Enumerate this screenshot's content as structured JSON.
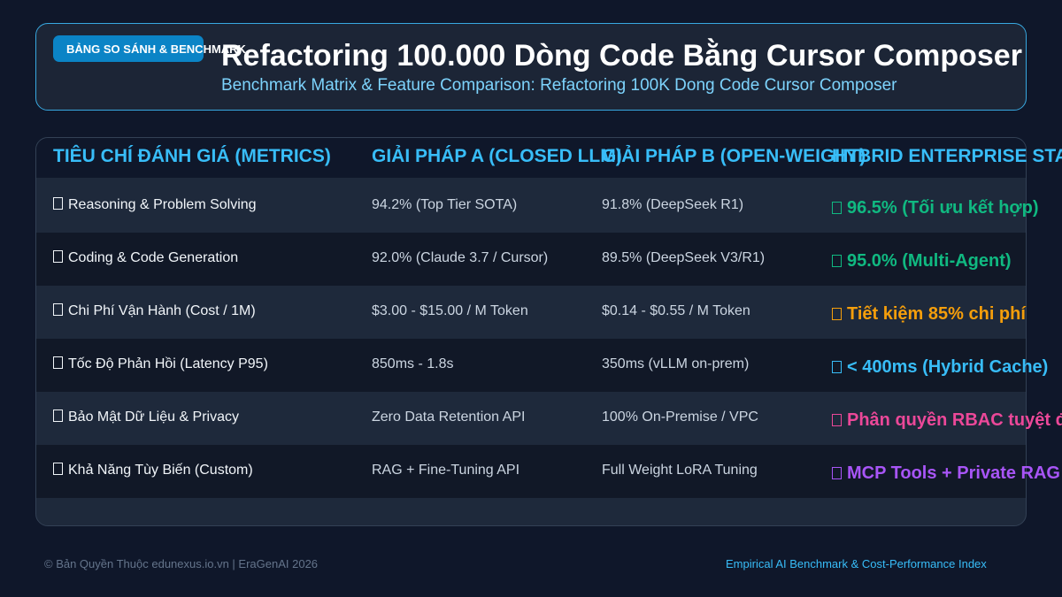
{
  "header": {
    "badge": "BẢNG SO SÁNH & BENCHMARK",
    "title": "Refactoring 100.000 Dòng Code Bằng Cursor Composer",
    "subtitle": "Benchmark Matrix & Feature Comparison: Refactoring 100K Dong Code Cursor Composer"
  },
  "table": {
    "columns": [
      "TIÊU CHÍ ĐÁNH GIÁ (METRICS)",
      "GIẢI PHÁP A (CLOSED LLM)",
      "GIẢI PHÁP B (OPEN-WEIGHT)",
      "HYBRID ENTERPRISE STACK"
    ],
    "rows": [
      [
        "Reasoning & Problem Solving",
        "94.2% (Top Tier SOTA)",
        "91.8% (DeepSeek R1)",
        "96.5% (Tối ưu kết hợp)"
      ],
      [
        "Coding & Code Generation",
        "92.0% (Claude 3.7 / Cursor)",
        "89.5% (DeepSeek V3/R1)",
        "95.0% (Multi-Agent)"
      ],
      [
        "Chi Phí Vận Hành (Cost / 1M)",
        "$3.00 - $15.00 / M Token",
        "$0.14 - $0.55 / M Token",
        "Tiết kiệm 85% chi phí"
      ],
      [
        "Tốc Độ Phản Hồi (Latency P95)",
        "850ms - 1.8s",
        "350ms (vLLM on-prem)",
        "< 400ms (Hybrid Cache)"
      ],
      [
        "Bảo Mật Dữ Liệu & Privacy",
        "Zero Data Retention API",
        "100% On-Premise / VPC",
        "Phân quyền RBAC tuyệt đối"
      ],
      [
        "Khả Năng Tùy Biến (Custom)",
        "RAG + Fine-Tuning API",
        "Full Weight LoRA Tuning",
        "MCP Tools + Private RAG"
      ]
    ]
  },
  "footer": {
    "left": "© Bản Quyền Thuộc edunexus.io.vn | EraGenAI 2026",
    "right": "Empirical AI Benchmark & Cost-Performance Index"
  }
}
